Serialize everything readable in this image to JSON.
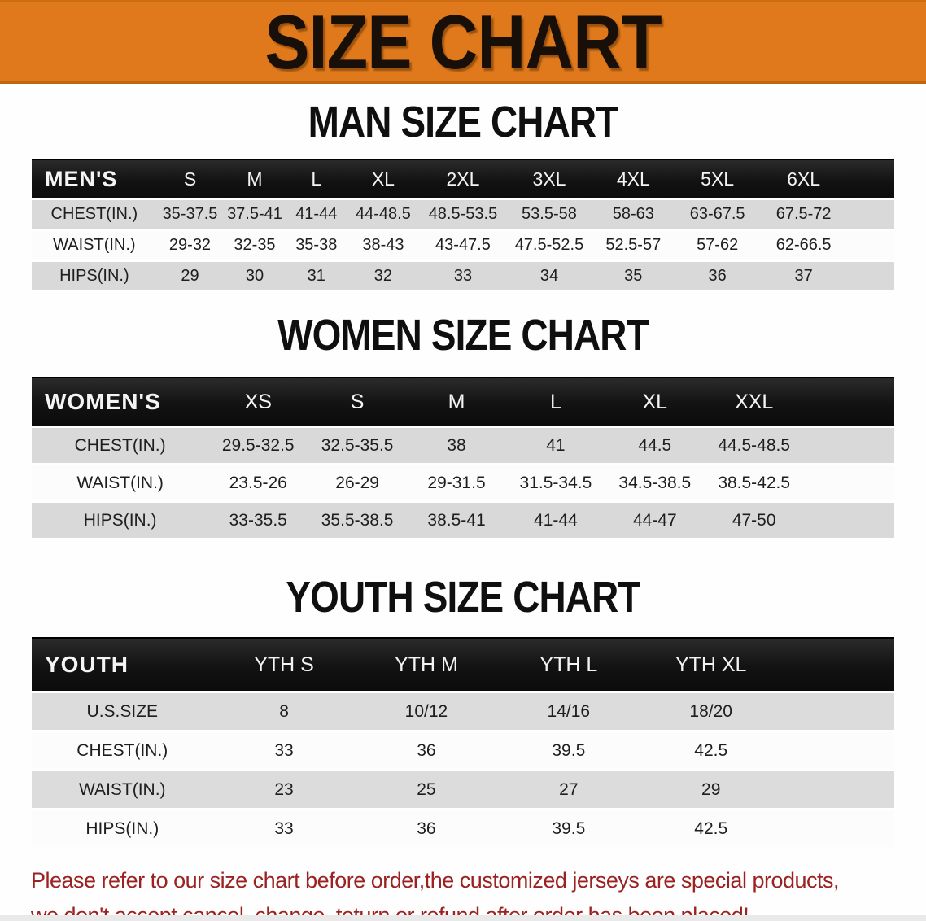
{
  "banner": {
    "title": "SIZE CHART",
    "bg_color": "#e0791b",
    "text_color": "#181008"
  },
  "colors": {
    "header_bar": "#161616",
    "stripe_gray": "#d9d9d9",
    "row_white": "#fcfcfc",
    "disclaimer_red": "#9c2121"
  },
  "sections": [
    {
      "heading": "MAN SIZE CHART",
      "table": {
        "header": {
          "label": "MEN'S",
          "sizes": [
            "S",
            "M",
            "L",
            "XL",
            "2XL",
            "3XL",
            "4XL",
            "5XL",
            "6XL"
          ]
        },
        "rows": [
          {
            "label": "CHEST(IN.)",
            "values": [
              "35-37.5",
              "37.5-41",
              "41-44",
              "44-48.5",
              "48.5-53.5",
              "53.5-58",
              "58-63",
              "63-67.5",
              "67.5-72"
            ]
          },
          {
            "label": "WAIST(IN.)",
            "values": [
              "29-32",
              "32-35",
              "35-38",
              "38-43",
              "43-47.5",
              "47.5-52.5",
              "52.5-57",
              "57-62",
              "62-66.5"
            ]
          },
          {
            "label": "HIPS(IN.)",
            "values": [
              "29",
              "30",
              "31",
              "32",
              "33",
              "34",
              "35",
              "36",
              "37"
            ]
          }
        ]
      }
    },
    {
      "heading": "WOMEN SIZE CHART",
      "table": {
        "header": {
          "label": "WOMEN'S",
          "sizes": [
            "XS",
            "S",
            "M",
            "L",
            "XL",
            "XXL"
          ]
        },
        "rows": [
          {
            "label": "CHEST(IN.)",
            "values": [
              "29.5-32.5",
              "32.5-35.5",
              "38",
              "41",
              "44.5",
              "44.5-48.5"
            ]
          },
          {
            "label": "WAIST(IN.)",
            "values": [
              "23.5-26",
              "26-29",
              "29-31.5",
              "31.5-34.5",
              "34.5-38.5",
              "38.5-42.5"
            ]
          },
          {
            "label": "HIPS(IN.)",
            "values": [
              "33-35.5",
              "35.5-38.5",
              "38.5-41",
              "41-44",
              "44-47",
              "47-50"
            ]
          }
        ]
      }
    },
    {
      "heading": "YOUTH SIZE CHART",
      "table": {
        "header": {
          "label": "YOUTH",
          "sizes": [
            "YTH S",
            "YTH M",
            "YTH L",
            "YTH XL"
          ]
        },
        "rows": [
          {
            "label": "U.S.SIZE",
            "values": [
              "8",
              "10/12",
              "14/16",
              "18/20"
            ]
          },
          {
            "label": "CHEST(IN.)",
            "values": [
              "33",
              "36",
              "39.5",
              "42.5"
            ]
          },
          {
            "label": "WAIST(IN.)",
            "values": [
              "23",
              "25",
              "27",
              "29"
            ]
          },
          {
            "label": "HIPS(IN.)",
            "values": [
              "33",
              "36",
              "39.5",
              "42.5"
            ]
          }
        ]
      }
    }
  ],
  "disclaimer": {
    "line1": "Please refer to our size chart before order,the customized jerseys are special products,",
    "line2": "we don't accept cancel, change, teturn or refund after order has been placed!"
  }
}
